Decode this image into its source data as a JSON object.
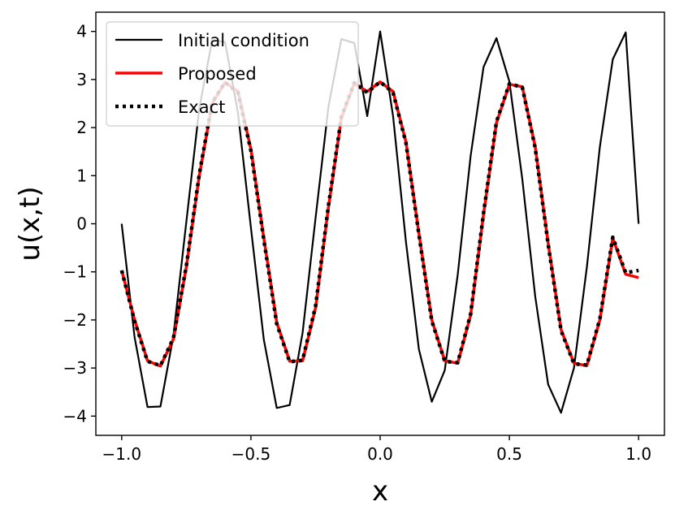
{
  "chart_data": {
    "type": "line",
    "title": "",
    "xlabel": "x",
    "ylabel": "u(x,t)",
    "xlim": [
      -1.1,
      1.1
    ],
    "ylim": [
      -4.4,
      4.4
    ],
    "x_ticks": [
      -1.0,
      -0.5,
      0.0,
      0.5,
      1.0
    ],
    "x_tick_labels": [
      "−1.0",
      "−0.5",
      "0.0",
      "0.5",
      "1.0"
    ],
    "y_ticks": [
      -4,
      -3,
      -2,
      -1,
      0,
      1,
      2,
      3,
      4
    ],
    "y_tick_labels": [
      "−4",
      "−3",
      "−2",
      "−1",
      "0",
      "1",
      "2",
      "3",
      "4"
    ],
    "grid": false,
    "legend_position": "top-left",
    "x": [
      -1.0,
      -0.95,
      -0.9,
      -0.85,
      -0.8,
      -0.75,
      -0.7,
      -0.65,
      -0.6,
      -0.55,
      -0.5,
      -0.45,
      -0.4,
      -0.35,
      -0.3,
      -0.25,
      -0.2,
      -0.15,
      -0.1,
      -0.05,
      0.0,
      0.05,
      0.1,
      0.15,
      0.2,
      0.25,
      0.3,
      0.35,
      0.4,
      0.45,
      0.5,
      0.55,
      0.6,
      0.65,
      0.7,
      0.75,
      0.8,
      0.85,
      0.9,
      0.95,
      1.0
    ],
    "series": [
      {
        "name": "Initial condition",
        "color": "#000000",
        "style": "solid",
        "values": [
          0.0,
          -2.36,
          -3.81,
          -3.8,
          -2.33,
          0.04,
          2.39,
          3.82,
          3.78,
          2.3,
          -0.08,
          -2.41,
          -3.83,
          -3.77,
          -2.27,
          0.12,
          2.44,
          3.84,
          3.76,
          2.24,
          4.0,
          2.24,
          -0.38,
          -2.61,
          -3.7,
          -3.05,
          -1.06,
          1.41,
          3.26,
          3.86,
          2.96,
          0.93,
          -1.51,
          -3.34,
          -3.93,
          -3.0,
          -0.9,
          1.6,
          3.42,
          3.98,
          0.0
        ]
      },
      {
        "name": "Proposed",
        "color": "#ff0000",
        "style": "solid",
        "values": [
          -0.97,
          -2.0,
          -2.85,
          -2.96,
          -2.4,
          -0.9,
          1.0,
          2.5,
          2.94,
          2.75,
          1.55,
          -0.3,
          -2.05,
          -2.86,
          -2.85,
          -1.75,
          0.35,
          2.2,
          2.92,
          2.75,
          2.95,
          2.75,
          1.7,
          -0.2,
          -2.0,
          -2.85,
          -2.9,
          -1.9,
          0.2,
          2.1,
          2.9,
          2.85,
          1.6,
          -0.4,
          -2.2,
          -2.9,
          -2.95,
          -2.0,
          -0.3,
          -1.05,
          -1.12
        ]
      },
      {
        "name": "Exact",
        "color": "#000000",
        "style": "dotted",
        "values": [
          -0.97,
          -2.02,
          -2.86,
          -2.95,
          -2.38,
          -0.88,
          1.02,
          2.52,
          2.94,
          2.73,
          1.52,
          -0.33,
          -2.08,
          -2.87,
          -2.84,
          -1.72,
          0.38,
          2.22,
          2.93,
          2.73,
          2.95,
          2.73,
          1.68,
          -0.22,
          -2.02,
          -2.86,
          -2.89,
          -1.88,
          0.22,
          2.12,
          2.91,
          2.84,
          1.58,
          -0.42,
          -2.22,
          -2.91,
          -2.94,
          -1.98,
          -0.28,
          -1.02,
          -0.97
        ]
      }
    ]
  }
}
